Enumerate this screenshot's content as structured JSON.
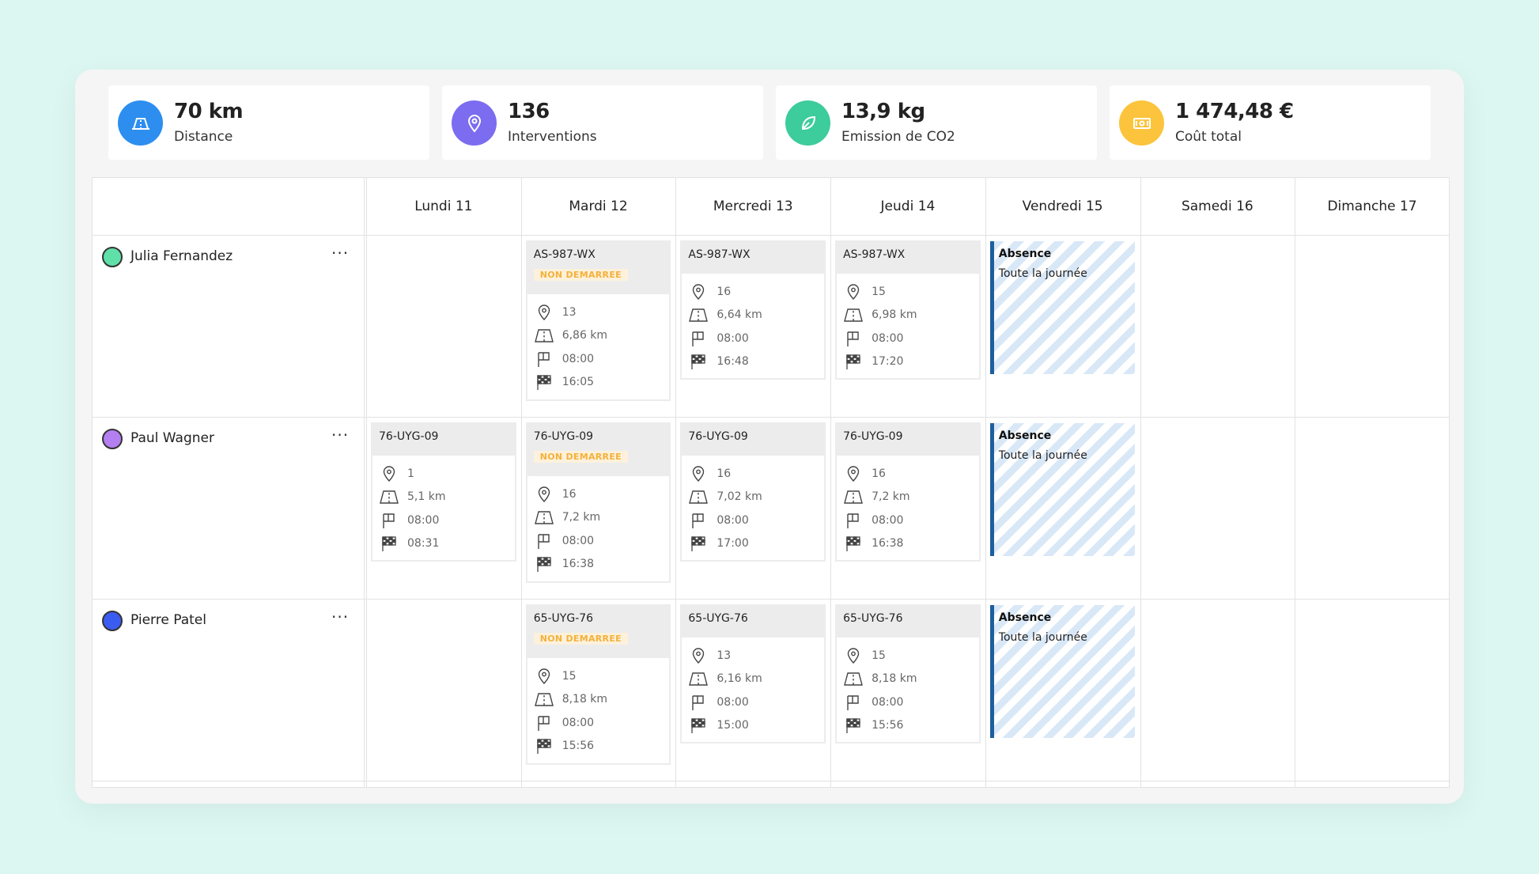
{
  "kpis": [
    {
      "value": "70 km",
      "label": "Distance",
      "icon": "road-icon",
      "color": "#2d8ef0"
    },
    {
      "value": "136",
      "label": "Interventions",
      "icon": "location-pin-icon",
      "color": "#7b6cf0"
    },
    {
      "value": "13,9 kg",
      "label": "Emission de CO2",
      "icon": "leaf-icon",
      "color": "#3dcc9b"
    },
    {
      "value": "1 474,48 €",
      "label": "Coût total",
      "icon": "money-icon",
      "color": "#fbc43c"
    }
  ],
  "days": [
    "Lundi 11",
    "Mardi 12",
    "Mercredi 13",
    "Jeudi 14",
    "Vendredi 15",
    "Samedi 16",
    "Dimanche 17"
  ],
  "people": [
    {
      "name": "Julia Fernandez",
      "color": "#5fe0a8",
      "more": "···"
    },
    {
      "name": "Paul Wagner",
      "color": "#b47ff0",
      "more": "···"
    },
    {
      "name": "Pierre Patel",
      "color": "#3b5cf0",
      "more": "···"
    }
  ],
  "status_label": "NON DEMARREE",
  "absence": {
    "title": "Absence",
    "subtitle": "Toute la journée"
  },
  "cards": [
    {
      "person": 0,
      "day": 1,
      "plate": "AS-987-WX",
      "badge": true,
      "stops": "13",
      "distance": "6,86 km",
      "start": "08:00",
      "end": "16:05"
    },
    {
      "person": 0,
      "day": 2,
      "plate": "AS-987-WX",
      "badge": false,
      "stops": "16",
      "distance": "6,64 km",
      "start": "08:00",
      "end": "16:48"
    },
    {
      "person": 0,
      "day": 3,
      "plate": "AS-987-WX",
      "badge": false,
      "stops": "15",
      "distance": "6,98 km",
      "start": "08:00",
      "end": "17:20"
    },
    {
      "person": 1,
      "day": 0,
      "plate": "76-UYG-09",
      "badge": false,
      "stops": "1",
      "distance": "5,1 km",
      "start": "08:00",
      "end": "08:31"
    },
    {
      "person": 1,
      "day": 1,
      "plate": "76-UYG-09",
      "badge": true,
      "stops": "16",
      "distance": "7,2 km",
      "start": "08:00",
      "end": "16:38"
    },
    {
      "person": 1,
      "day": 2,
      "plate": "76-UYG-09",
      "badge": false,
      "stops": "16",
      "distance": "7,02 km",
      "start": "08:00",
      "end": "17:00"
    },
    {
      "person": 1,
      "day": 3,
      "plate": "76-UYG-09",
      "badge": false,
      "stops": "16",
      "distance": "7,2 km",
      "start": "08:00",
      "end": "16:38"
    },
    {
      "person": 2,
      "day": 1,
      "plate": "65-UYG-76",
      "badge": true,
      "stops": "15",
      "distance": "8,18 km",
      "start": "08:00",
      "end": "15:56"
    },
    {
      "person": 2,
      "day": 2,
      "plate": "65-UYG-76",
      "badge": false,
      "stops": "13",
      "distance": "6,16 km",
      "start": "08:00",
      "end": "15:00"
    },
    {
      "person": 2,
      "day": 3,
      "plate": "65-UYG-76",
      "badge": false,
      "stops": "15",
      "distance": "8,18 km",
      "start": "08:00",
      "end": "15:56"
    }
  ],
  "absences": [
    {
      "person": 0,
      "day": 4
    },
    {
      "person": 1,
      "day": 4
    },
    {
      "person": 2,
      "day": 4
    }
  ]
}
